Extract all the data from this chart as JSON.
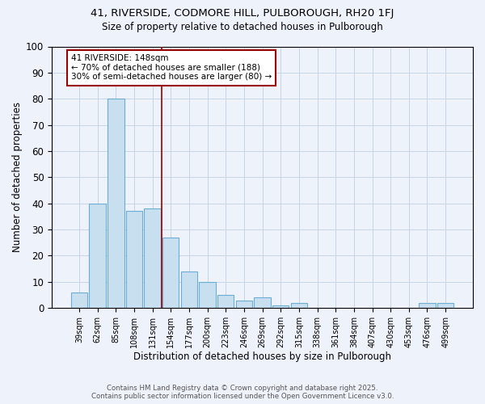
{
  "title": "41, RIVERSIDE, CODMORE HILL, PULBOROUGH, RH20 1FJ",
  "subtitle": "Size of property relative to detached houses in Pulborough",
  "xlabel": "Distribution of detached houses by size in Pulborough",
  "ylabel": "Number of detached properties",
  "footnote1": "Contains HM Land Registry data © Crown copyright and database right 2025.",
  "footnote2": "Contains public sector information licensed under the Open Government Licence v3.0.",
  "bin_labels": [
    "39sqm",
    "62sqm",
    "85sqm",
    "108sqm",
    "131sqm",
    "154sqm",
    "177sqm",
    "200sqm",
    "223sqm",
    "246sqm",
    "269sqm",
    "292sqm",
    "315sqm",
    "338sqm",
    "361sqm",
    "384sqm",
    "407sqm",
    "430sqm",
    "453sqm",
    "476sqm",
    "499sqm"
  ],
  "bar_values": [
    6,
    40,
    80,
    37,
    38,
    27,
    14,
    10,
    5,
    3,
    4,
    1,
    2,
    0,
    0,
    0,
    0,
    0,
    0,
    2,
    2
  ],
  "bar_color": "#c8dff0",
  "bar_edge_color": "#6aadd5",
  "grid_color": "#c5d5e8",
  "background_color": "#eef2fb",
  "vline_x": 4.5,
  "vline_color": "#990000",
  "annotation_text": "41 RIVERSIDE: 148sqm\n← 70% of detached houses are smaller (188)\n30% of semi-detached houses are larger (80) →",
  "annotation_box_color": "#ffffff",
  "annotation_box_edge": "#990000",
  "ylim": [
    0,
    100
  ],
  "yticks": [
    0,
    10,
    20,
    30,
    40,
    50,
    60,
    70,
    80,
    90,
    100
  ]
}
